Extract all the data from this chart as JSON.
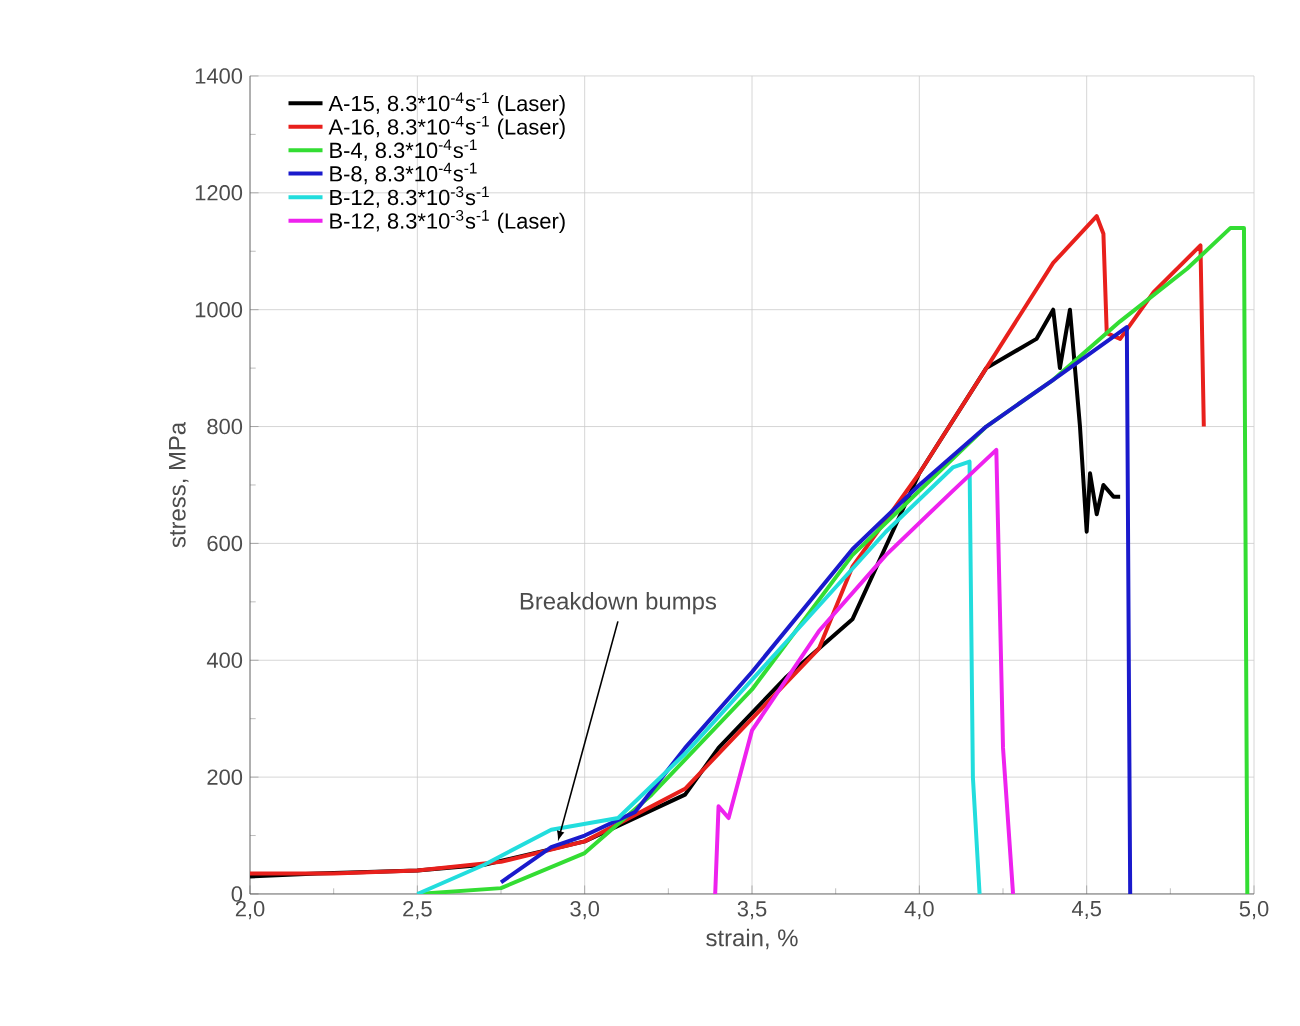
{
  "chart_data": {
    "type": "line",
    "xlabel": "strain, %",
    "ylabel": "stress, MPa",
    "xlim": [
      2.0,
      5.0
    ],
    "ylim": [
      0,
      1400
    ],
    "xticks": [
      {
        "value": 2.0,
        "label": "2,0"
      },
      {
        "value": 2.5,
        "label": "2,5"
      },
      {
        "value": 3.0,
        "label": "3,0"
      },
      {
        "value": 3.5,
        "label": "3,5"
      },
      {
        "value": 4.0,
        "label": "4,0"
      },
      {
        "value": 4.5,
        "label": "4,5"
      },
      {
        "value": 5.0,
        "label": "5,0"
      }
    ],
    "yticks": [
      0,
      200,
      400,
      600,
      800,
      1000,
      1200,
      1400
    ],
    "grid": true,
    "legend": "top left",
    "line_style": "solid",
    "annotations": [
      {
        "text": "Breakdown bumps",
        "x": 2.92,
        "y": 90
      }
    ],
    "series": [
      {
        "name": "A-15, 8.3*10$^{-4}$s$^{-1}$ (Laser)",
        "color": "#000000",
        "x": [
          2.0,
          2.2,
          2.5,
          2.7,
          3.0,
          3.3,
          3.4,
          3.6,
          3.8,
          4.0,
          4.2,
          4.35,
          4.4,
          4.42,
          4.45,
          4.48,
          4.5,
          4.51,
          4.53,
          4.55,
          4.58,
          4.6
        ],
        "values": [
          30,
          35,
          40,
          50,
          90,
          170,
          250,
          370,
          470,
          720,
          900,
          950,
          1000,
          900,
          1000,
          800,
          620,
          720,
          650,
          700,
          680,
          680
        ]
      },
      {
        "name": "A-16, 8.3*10$^{-4}$s$^{-1}$ (Laser)",
        "color": "#e8201c",
        "x": [
          2.0,
          2.25,
          2.5,
          2.75,
          3.0,
          3.3,
          3.5,
          3.7,
          3.8,
          4.0,
          4.2,
          4.4,
          4.53,
          4.55,
          4.56,
          4.6,
          4.7,
          4.84,
          4.85
        ],
        "values": [
          35,
          35,
          40,
          55,
          90,
          180,
          300,
          420,
          560,
          720,
          900,
          1080,
          1160,
          1130,
          960,
          950,
          1030,
          1110,
          800
        ]
      },
      {
        "name": "B-4, 8.3*10$^{-4}$s$^{-1}$",
        "color": "#33dd33",
        "x": [
          2.5,
          2.75,
          3.0,
          3.2,
          3.5,
          3.8,
          4.2,
          4.4,
          4.6,
          4.8,
          4.93,
          4.97,
          4.98
        ],
        "values": [
          0,
          10,
          70,
          170,
          350,
          580,
          800,
          880,
          980,
          1070,
          1140,
          1140,
          0
        ]
      },
      {
        "name": "B-8, 8.3*10$^{-4}$s$^{-1}$",
        "color": "#1a1acc",
        "x": [
          2.75,
          2.9,
          3.0,
          3.15,
          3.3,
          3.5,
          3.8,
          4.0,
          4.2,
          4.4,
          4.62,
          4.63
        ],
        "values": [
          20,
          80,
          100,
          140,
          250,
          380,
          590,
          700,
          800,
          880,
          970,
          0
        ]
      },
      {
        "name": "B-12, 8.3*10$^{-3}$s$^{-1}$",
        "color": "#22dddd",
        "x": [
          2.5,
          2.7,
          2.9,
          3.1,
          3.3,
          3.6,
          3.9,
          4.1,
          4.15,
          4.16,
          4.18
        ],
        "values": [
          0,
          50,
          110,
          130,
          240,
          430,
          620,
          730,
          740,
          200,
          0
        ]
      },
      {
        "name": "B-12, 8.3*10$^{-3}$s$^{-1}$ (Laser)",
        "color": "#ee22ee",
        "x": [
          3.39,
          3.4,
          3.43,
          3.5,
          3.7,
          3.9,
          4.1,
          4.23,
          4.25,
          4.28
        ],
        "values": [
          0,
          150,
          130,
          280,
          450,
          580,
          690,
          760,
          250,
          0
        ]
      }
    ]
  }
}
